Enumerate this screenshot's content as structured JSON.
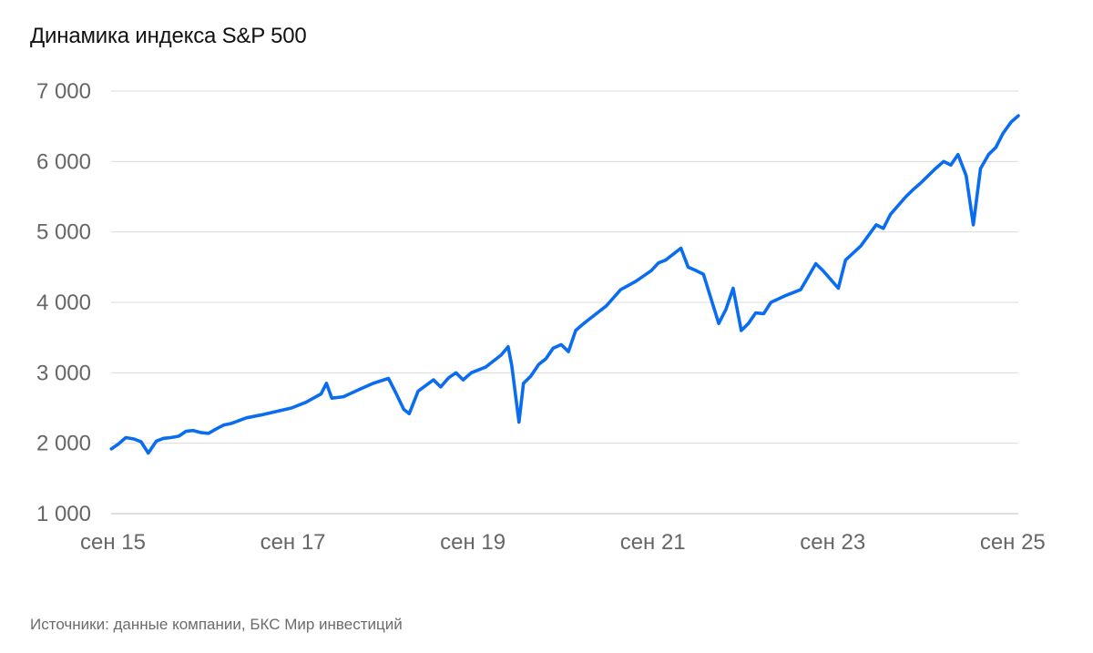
{
  "title": "Динамика индекса S&P 500",
  "source": "Источники: данные компании, БКС Мир инвестиций",
  "chart_data": {
    "type": "line",
    "title": "Динамика индекса S&P 500",
    "xlabel": "",
    "ylabel": "",
    "xlim": [
      2015.667,
      2025.75
    ],
    "ylim": [
      1000,
      7000
    ],
    "grid": true,
    "line_color": "#0a6cf0",
    "y_ticks": [
      {
        "value": 1000,
        "label": "1 000"
      },
      {
        "value": 2000,
        "label": "2 000"
      },
      {
        "value": 3000,
        "label": "3 000"
      },
      {
        "value": 4000,
        "label": "4 000"
      },
      {
        "value": 5000,
        "label": "5 000"
      },
      {
        "value": 6000,
        "label": "6 000"
      },
      {
        "value": 7000,
        "label": "7 000"
      }
    ],
    "x_ticks": [
      {
        "value": 2015.667,
        "label": "сен 15"
      },
      {
        "value": 2017.667,
        "label": "сен 17"
      },
      {
        "value": 2019.667,
        "label": "сен 19"
      },
      {
        "value": 2021.667,
        "label": "сен 21"
      },
      {
        "value": 2023.667,
        "label": "сен 23"
      },
      {
        "value": 2025.667,
        "label": "сен 25"
      }
    ],
    "series": [
      {
        "x": [
          2015.67,
          2015.75,
          2015.83,
          2015.92,
          2016.0,
          2016.08,
          2016.17,
          2016.25,
          2016.33,
          2016.42,
          2016.5,
          2016.58,
          2016.67,
          2016.75,
          2016.83,
          2016.92,
          2017.0,
          2017.17,
          2017.33,
          2017.5,
          2017.67,
          2017.83,
          2018.0,
          2018.06,
          2018.12,
          2018.25,
          2018.42,
          2018.58,
          2018.75,
          2018.83,
          2018.92,
          2018.98,
          2019.08,
          2019.25,
          2019.33,
          2019.42,
          2019.5,
          2019.58,
          2019.67,
          2019.83,
          2020.0,
          2020.08,
          2020.12,
          2020.2,
          2020.25,
          2020.33,
          2020.42,
          2020.5,
          2020.58,
          2020.67,
          2020.75,
          2020.83,
          2020.92,
          2021.0,
          2021.17,
          2021.33,
          2021.5,
          2021.67,
          2021.75,
          2021.83,
          2022.0,
          2022.08,
          2022.17,
          2022.25,
          2022.42,
          2022.5,
          2022.58,
          2022.67,
          2022.75,
          2022.83,
          2022.92,
          2023.0,
          2023.17,
          2023.33,
          2023.5,
          2023.58,
          2023.75,
          2023.83,
          2024.0,
          2024.17,
          2024.25,
          2024.33,
          2024.5,
          2024.58,
          2024.67,
          2024.83,
          2024.92,
          2025.0,
          2025.08,
          2025.17,
          2025.25,
          2025.33,
          2025.42,
          2025.5,
          2025.58,
          2025.67,
          2025.75
        ],
        "y": [
          1920,
          1990,
          2080,
          2060,
          2020,
          1860,
          2030,
          2070,
          2080,
          2100,
          2170,
          2180,
          2150,
          2140,
          2200,
          2260,
          2280,
          2360,
          2400,
          2450,
          2500,
          2580,
          2700,
          2850,
          2640,
          2660,
          2760,
          2850,
          2920,
          2720,
          2480,
          2420,
          2740,
          2900,
          2800,
          2930,
          3000,
          2900,
          3000,
          3080,
          3250,
          3370,
          3100,
          2300,
          2850,
          2950,
          3120,
          3200,
          3350,
          3400,
          3300,
          3600,
          3700,
          3780,
          3950,
          4180,
          4300,
          4450,
          4560,
          4600,
          4770,
          4500,
          4450,
          4400,
          3700,
          3900,
          4200,
          3600,
          3700,
          3850,
          3840,
          4000,
          4100,
          4180,
          4550,
          4450,
          4200,
          4600,
          4800,
          5100,
          5050,
          5250,
          5500,
          5600,
          5700,
          5900,
          6000,
          5950,
          6100,
          5800,
          5100,
          5900,
          6100,
          6200,
          6400,
          6560,
          6650
        ]
      }
    ]
  }
}
